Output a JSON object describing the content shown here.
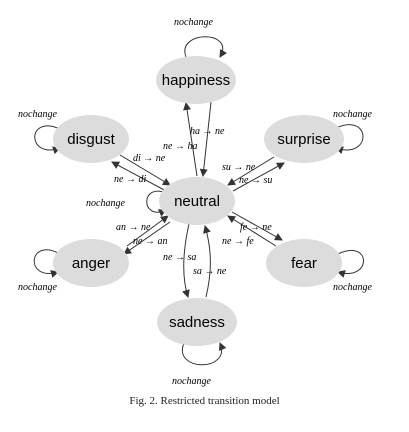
{
  "nodes": {
    "neutral": "neutral",
    "happiness": "happiness",
    "disgust": "disgust",
    "surprise": "surprise",
    "anger": "anger",
    "fear": "fear",
    "sadness": "sadness"
  },
  "loops": {
    "happiness": "nochange",
    "disgust": "nochange",
    "surprise": "nochange",
    "neutral": "nochange",
    "anger": "nochange",
    "fear": "nochange",
    "sadness": "nochange"
  },
  "edges": {
    "ha_ne": "ha → ne",
    "ne_ha": "ne → ha",
    "di_ne": "di → ne",
    "ne_di": "ne → di",
    "su_ne": "su → ne",
    "ne_su": "ne → su",
    "an_ne": "an → ne",
    "ne_an": "ne → an",
    "fe_ne": "fe → ne",
    "ne_fe": "ne → fe",
    "ne_sa": "ne → sa",
    "sa_ne": "sa → ne"
  },
  "caption": "Fig. 2.   Restricted transition model"
}
